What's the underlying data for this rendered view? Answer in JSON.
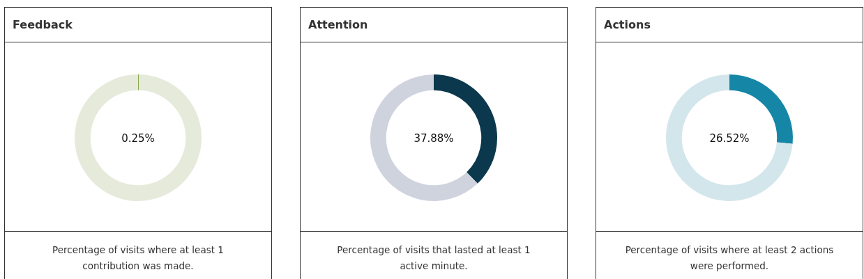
{
  "chart_data": [
    {
      "type": "donut",
      "title": "Feedback",
      "categories": [
        null,
        null
      ],
      "values": [
        0.25,
        99.75
      ],
      "colors": [
        "#8aa64e",
        "#e6eadb"
      ],
      "annotations": [
        "0.25%",
        "Percentage of visits where at least 1 contribution was made."
      ]
    },
    {
      "type": "donut",
      "title": "Attention",
      "categories": [
        null,
        null
      ],
      "values": [
        37.88,
        62.12
      ],
      "colors": [
        "#0b384c",
        "#cfd3de"
      ],
      "annotations": [
        "37.88%",
        "Percentage of visits that lasted at least 1 active minute."
      ]
    },
    {
      "type": "donut",
      "title": "Actions",
      "categories": [
        null,
        null
      ],
      "values": [
        26.52,
        73.48
      ],
      "colors": [
        "#1686a6",
        "#d3e6ec"
      ],
      "annotations": [
        "26.52%",
        "Percentage of visits where at least 2 actions were performed."
      ]
    }
  ]
}
